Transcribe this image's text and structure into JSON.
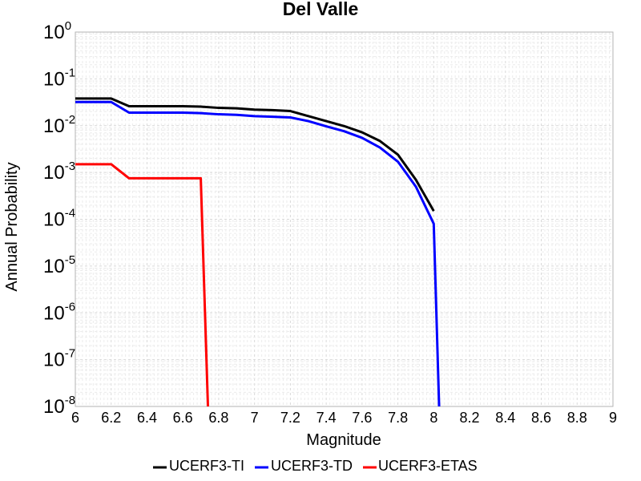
{
  "chart_data": {
    "type": "line",
    "title": "Del Valle",
    "xlabel": "Magnitude",
    "ylabel": "Annual Probability",
    "xlim": [
      6,
      9
    ],
    "ylim": [
      1e-08,
      1
    ],
    "yscale": "log",
    "grid": true,
    "legend_position": "bottom",
    "x_ticks": [
      "6",
      "6.2",
      "6.4",
      "6.6",
      "6.8",
      "7",
      "7.2",
      "7.4",
      "7.6",
      "7.8",
      "8",
      "8.2",
      "8.4",
      "8.6",
      "8.8",
      "9"
    ],
    "y_ticks": [
      {
        "base": "10",
        "exp": "0"
      },
      {
        "base": "10",
        "exp": "-1"
      },
      {
        "base": "10",
        "exp": "-2"
      },
      {
        "base": "10",
        "exp": "-3"
      },
      {
        "base": "10",
        "exp": "-4"
      },
      {
        "base": "10",
        "exp": "-5"
      },
      {
        "base": "10",
        "exp": "-6"
      },
      {
        "base": "10",
        "exp": "-7"
      },
      {
        "base": "10",
        "exp": "-8"
      }
    ],
    "series": [
      {
        "name": "UCERF3-TI",
        "color": "#000000",
        "x": [
          6.0,
          6.2,
          6.3,
          6.4,
          6.5,
          6.6,
          6.7,
          6.8,
          6.9,
          7.0,
          7.1,
          7.2,
          7.3,
          7.4,
          7.5,
          7.6,
          7.7,
          7.8,
          7.9,
          8.0
        ],
        "y": [
          0.038,
          0.038,
          0.026,
          0.026,
          0.026,
          0.026,
          0.0255,
          0.024,
          0.0235,
          0.022,
          0.0215,
          0.0205,
          0.016,
          0.0125,
          0.0098,
          0.0072,
          0.0047,
          0.0024,
          0.0007,
          0.00015
        ]
      },
      {
        "name": "UCERF3-TD",
        "color": "#0000ff",
        "x": [
          6.0,
          6.2,
          6.3,
          6.4,
          6.5,
          6.6,
          6.7,
          6.8,
          6.9,
          7.0,
          7.1,
          7.2,
          7.3,
          7.4,
          7.5,
          7.6,
          7.7,
          7.8,
          7.9,
          8.0,
          8.03
        ],
        "y": [
          0.032,
          0.032,
          0.019,
          0.019,
          0.019,
          0.019,
          0.0185,
          0.0175,
          0.017,
          0.016,
          0.0155,
          0.015,
          0.0125,
          0.0097,
          0.0076,
          0.0055,
          0.0034,
          0.0017,
          0.0005,
          8e-05,
          1e-08
        ]
      },
      {
        "name": "UCERF3-ETAS",
        "color": "#ff0000",
        "x": [
          6.0,
          6.2,
          6.3,
          6.7,
          6.74
        ],
        "y": [
          0.0015,
          0.0015,
          0.00075,
          0.00075,
          1e-08
        ]
      }
    ]
  }
}
